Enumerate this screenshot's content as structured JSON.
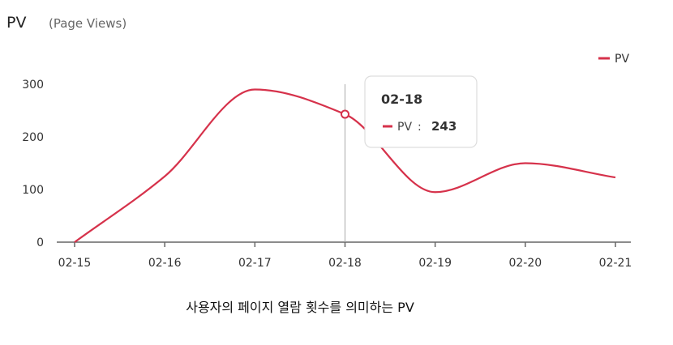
{
  "chart_data": {
    "type": "line",
    "title": "PV",
    "subtitle": "(Page Views)",
    "categories": [
      "02-15",
      "02-16",
      "02-17",
      "02-18",
      "02-19",
      "02-20",
      "02-21"
    ],
    "series": [
      {
        "name": "PV",
        "values": [
          0,
          125,
          290,
          243,
          95,
          150,
          123
        ],
        "color": "#d6324b"
      }
    ],
    "ylim": [
      0,
      300
    ],
    "yticks": [
      0,
      100,
      200,
      300
    ],
    "legend_position": "top-right",
    "grid": false,
    "tooltip": {
      "category": "02-18",
      "series": "PV",
      "separator": ":",
      "value": "243"
    }
  },
  "caption": "사용자의 페이지 열람 횟수를 의미하는 PV"
}
